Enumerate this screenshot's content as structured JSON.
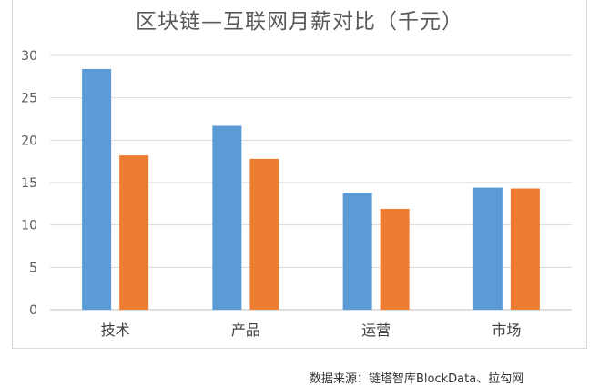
{
  "chart_data": {
    "type": "bar",
    "title": "区块链—互联网月薪对比（千元）",
    "categories": [
      "技术",
      "产品",
      "运营",
      "市场"
    ],
    "series": [
      {
        "values": [
          28.4,
          21.7,
          13.8,
          14.4
        ],
        "color": "#5b9bd5"
      },
      {
        "values": [
          18.2,
          17.8,
          11.9,
          14.3
        ],
        "color": "#ed7d31"
      }
    ],
    "yticks": [
      "0",
      "5",
      "10",
      "15",
      "20",
      "25",
      "30"
    ],
    "ylim": [
      0,
      30
    ],
    "grid": true,
    "legend": "none"
  },
  "source_note": "数据来源：链塔智库BlockData、拉勾网"
}
